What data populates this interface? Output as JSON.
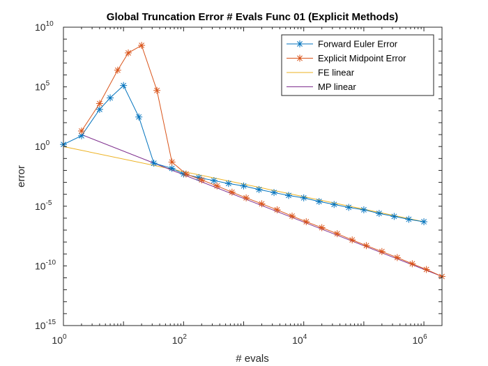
{
  "chart_data": {
    "type": "line",
    "title": "Global Truncation Error # Evals Func 01 (Explicit Methods)",
    "xlabel": "# evals",
    "ylabel": "error",
    "xscale": "log",
    "yscale": "log",
    "xlim": [
      1,
      2000000
    ],
    "ylim": [
      1e-15,
      10000000000.0
    ],
    "grid": false,
    "legend_position": "top-right",
    "x_ticks": [
      {
        "base": "10",
        "exp": "0"
      },
      {
        "base": "10",
        "exp": "2"
      },
      {
        "base": "10",
        "exp": "4"
      },
      {
        "base": "10",
        "exp": "6"
      }
    ],
    "y_ticks": [
      {
        "base": "10",
        "exp": "-15"
      },
      {
        "base": "10",
        "exp": "-10"
      },
      {
        "base": "10",
        "exp": "-5"
      },
      {
        "base": "10",
        "exp": "0"
      },
      {
        "base": "10",
        "exp": "5"
      },
      {
        "base": "10",
        "exp": "10"
      }
    ],
    "series": [
      {
        "name": "Forward Euler Error",
        "color": "#0072BD",
        "marker": "asterisk",
        "x": [
          1,
          2,
          4,
          6,
          10,
          18,
          32,
          64,
          100,
          180,
          320,
          560,
          1000,
          1800,
          3200,
          5600,
          10000,
          18000,
          32000,
          56000,
          100000,
          180000,
          320000,
          560000,
          1000000
        ],
        "y": [
          1.5,
          8,
          1300,
          12000,
          130000,
          300,
          0.04,
          0.015,
          0.005,
          0.0025,
          0.0014,
          0.0008,
          0.0005,
          0.00025,
          0.00014,
          8e-05,
          5e-05,
          2.5e-05,
          1.4e-05,
          8e-06,
          5e-06,
          2.5e-06,
          1.4e-06,
          8e-07,
          5e-07
        ]
      },
      {
        "name": "Explicit Midpoint Error",
        "color": "#D95319",
        "marker": "asterisk",
        "x": [
          2,
          4,
          8,
          12,
          20,
          36,
          64,
          110,
          200,
          360,
          640,
          1100,
          2000,
          3600,
          6400,
          11000,
          20000,
          36000,
          64000,
          110000,
          200000,
          360000,
          640000,
          1100000,
          2000000
        ],
        "y": [
          20,
          4000,
          2500000,
          70000000,
          300000000,
          50000,
          0.05,
          0.005,
          0.0016,
          0.0005,
          0.00015,
          5e-05,
          1.6e-05,
          5e-06,
          1.5e-06,
          5e-07,
          1.6e-07,
          5e-08,
          1.5e-08,
          5e-09,
          1.6e-09,
          5e-10,
          1.5e-10,
          5e-11,
          1.3e-11
        ]
      },
      {
        "name": "FE linear",
        "color": "#EDB120",
        "marker": "none",
        "x": [
          1,
          1000000
        ],
        "y": [
          1,
          5e-07
        ]
      },
      {
        "name": "MP linear",
        "color": "#7E2F8E",
        "marker": "none",
        "x": [
          2,
          2000000
        ],
        "y": [
          10,
          1.3e-11
        ]
      }
    ]
  }
}
